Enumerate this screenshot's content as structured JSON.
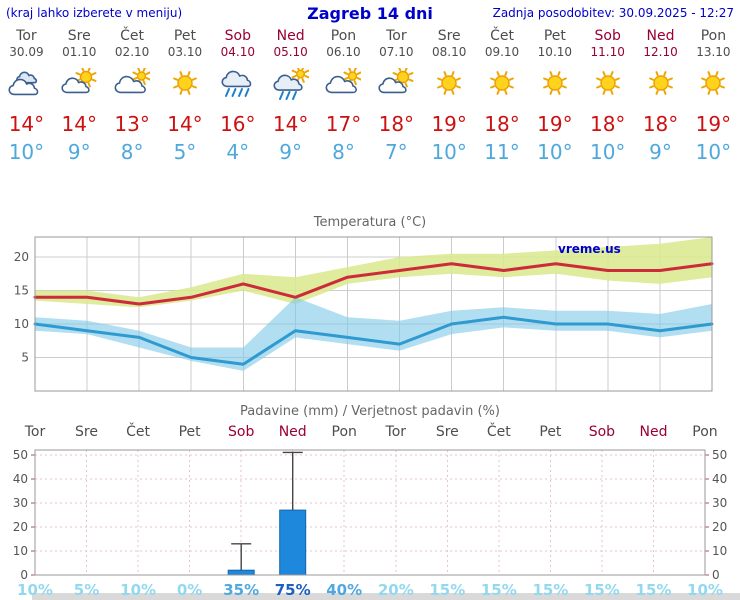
{
  "header": {
    "left_note": "(kraj lahko izberete v meniju)",
    "title": "Zagreb 14 dni",
    "updated": "Zadnja posodobitev: 30.09.2025 - 12:27"
  },
  "colors": {
    "header_blue": "#0000cc",
    "weekday_text": "#4d4d4d",
    "weekend_text": "#990033",
    "temp_high_text": "#cc1111",
    "temp_low_text": "#4fa8dc",
    "line_high": "#cc2b3a",
    "band_high": "#d9e78c",
    "line_low": "#2f9ad0",
    "band_low": "#7fc8e8",
    "bar_fill": "#1e88dd",
    "prob_low": "#92d9f0",
    "prob_mid": "#4fa8e0",
    "prob_high": "#1e5fc2"
  },
  "days": [
    {
      "name": "Tor",
      "date": "30.09",
      "weekend": false,
      "icon": "cloudy",
      "high": "14°",
      "low": "10°"
    },
    {
      "name": "Sre",
      "date": "01.10",
      "weekend": false,
      "icon": "partly-sunny",
      "high": "14°",
      "low": "9°"
    },
    {
      "name": "Čet",
      "date": "02.10",
      "weekend": false,
      "icon": "mostly-cloudy",
      "high": "13°",
      "low": "8°"
    },
    {
      "name": "Pet",
      "date": "03.10",
      "weekend": false,
      "icon": "sunny",
      "high": "14°",
      "low": "5°"
    },
    {
      "name": "Sob",
      "date": "04.10",
      "weekend": true,
      "icon": "rain",
      "high": "16°",
      "low": "4°"
    },
    {
      "name": "Ned",
      "date": "05.10",
      "weekend": true,
      "icon": "showers-sun",
      "high": "14°",
      "low": "9°"
    },
    {
      "name": "Pon",
      "date": "06.10",
      "weekend": false,
      "icon": "mostly-cloudy",
      "high": "17°",
      "low": "8°"
    },
    {
      "name": "Tor",
      "date": "07.10",
      "weekend": false,
      "icon": "partly-sunny",
      "high": "18°",
      "low": "7°"
    },
    {
      "name": "Sre",
      "date": "08.10",
      "weekend": false,
      "icon": "sunny",
      "high": "19°",
      "low": "10°"
    },
    {
      "name": "Čet",
      "date": "09.10",
      "weekend": false,
      "icon": "sunny",
      "high": "18°",
      "low": "11°"
    },
    {
      "name": "Pet",
      "date": "10.10",
      "weekend": false,
      "icon": "sunny",
      "high": "19°",
      "low": "10°"
    },
    {
      "name": "Sob",
      "date": "11.10",
      "weekend": true,
      "icon": "sunny",
      "high": "18°",
      "low": "10°"
    },
    {
      "name": "Ned",
      "date": "12.10",
      "weekend": true,
      "icon": "sunny",
      "high": "18°",
      "low": "9°"
    },
    {
      "name": "Pon",
      "date": "13.10",
      "weekend": false,
      "icon": "sunny",
      "high": "19°",
      "low": "10°"
    }
  ],
  "chart_data": [
    {
      "type": "line",
      "title": "Temperatura (°C)",
      "watermark": "vreme.us",
      "x_labels": [
        "Tor",
        "Sre",
        "Čet",
        "Pet",
        "Sob",
        "Ned",
        "Pon",
        "Tor",
        "Sre",
        "Čet",
        "Pet",
        "Sob",
        "Ned",
        "Pon"
      ],
      "ylim": [
        0,
        23
      ],
      "yticks": [
        5,
        10,
        15,
        20
      ],
      "series": [
        {
          "name": "max",
          "color": "#cc2b3a",
          "values": [
            14,
            14,
            13,
            14,
            16,
            14,
            17,
            18,
            19,
            18,
            19,
            18,
            18,
            19
          ]
        },
        {
          "name": "max_upper",
          "values": [
            15,
            15,
            14,
            15.5,
            17.5,
            17,
            18.5,
            20,
            20.5,
            20.5,
            21,
            21.5,
            22,
            23
          ]
        },
        {
          "name": "max_lower",
          "values": [
            13.5,
            13,
            12.5,
            13.5,
            15,
            13,
            16,
            17,
            17.5,
            17,
            17.5,
            16.5,
            16,
            17
          ]
        },
        {
          "name": "min",
          "color": "#2f9ad0",
          "values": [
            10,
            9,
            8,
            5,
            4,
            9,
            8,
            7,
            10,
            11,
            10,
            10,
            9,
            10
          ]
        },
        {
          "name": "min_upper",
          "values": [
            11,
            10.5,
            9,
            6.5,
            6.5,
            14,
            11,
            10.5,
            12,
            12.5,
            12,
            12,
            11.5,
            13
          ]
        },
        {
          "name": "min_lower",
          "values": [
            9,
            8.5,
            6.5,
            4.5,
            3,
            8,
            7,
            6,
            8.5,
            9.5,
            9,
            9,
            8,
            9
          ]
        }
      ]
    },
    {
      "type": "bar",
      "title": "Padavine (mm) / Verjetnost padavin (%)",
      "categories": [
        "Tor",
        "Sre",
        "Čet",
        "Pet",
        "Sob",
        "Ned",
        "Pon",
        "Tor",
        "Sre",
        "Čet",
        "Pet",
        "Sob",
        "Ned",
        "Pon"
      ],
      "values_mm": [
        0,
        0,
        0,
        0,
        2,
        27,
        0,
        0,
        0,
        0,
        0,
        0,
        0,
        0
      ],
      "whisker_max_mm": [
        0,
        0,
        0,
        0,
        13,
        51,
        0,
        0,
        0,
        0,
        0,
        0,
        0,
        0
      ],
      "probabilities_pct": [
        10,
        5,
        10,
        0,
        35,
        75,
        40,
        20,
        15,
        15,
        15,
        15,
        15,
        10
      ],
      "ylim": [
        0,
        52
      ],
      "yticks": [
        0,
        10,
        20,
        30,
        40,
        50
      ]
    }
  ]
}
